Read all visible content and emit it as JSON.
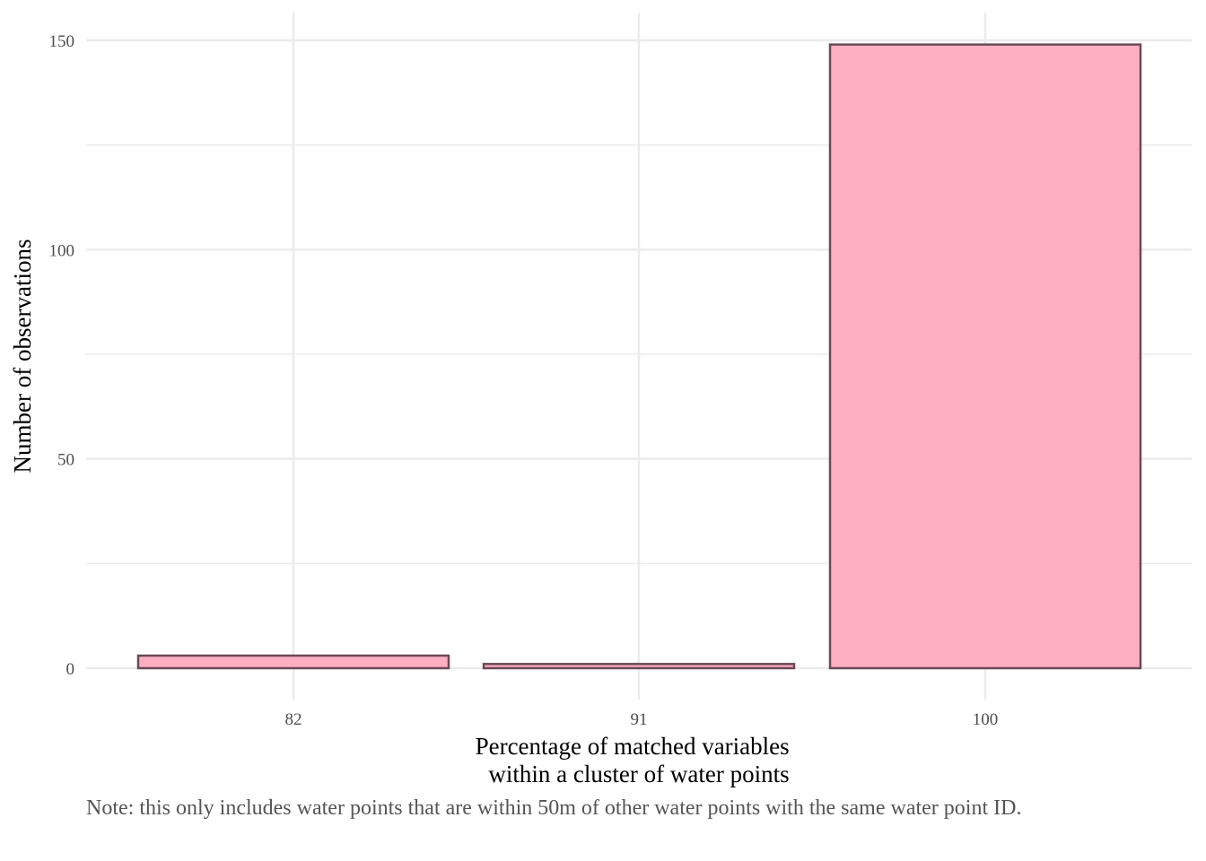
{
  "chart_data": {
    "type": "bar",
    "categories": [
      "82",
      "91",
      "100"
    ],
    "values": [
      3,
      1,
      149
    ],
    "xlabel_lines": [
      "Percentage of matched variables",
      "within a cluster of water points"
    ],
    "ylabel": "Number of observations",
    "yticks": [
      0,
      50,
      100,
      150
    ],
    "ylim": [
      0,
      150
    ],
    "grid": true,
    "bar_fill": "#FFAFC1",
    "bar_stroke": "#6B4A57",
    "grid_color": "#EBEBEB"
  },
  "caption": "Note: this only includes water points that are within 50m of other water points with the same water point ID."
}
